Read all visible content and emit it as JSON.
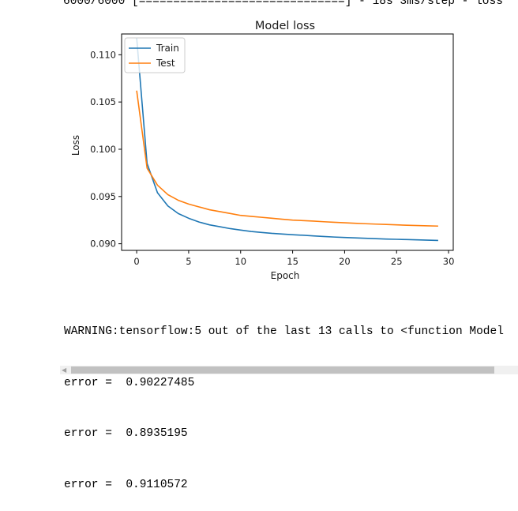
{
  "output": {
    "progress_line": "6000/6000 [==============================] - 18s 3ms/step - loss",
    "warning_line": "WARNING:tensorflow:5 out of the last 13 calls to <function Model",
    "error_lines": [
      "error =  0.90227485",
      "error =  0.8935195",
      "error =  0.9110572"
    ]
  },
  "chart_data": {
    "type": "line",
    "title": "Model loss",
    "xlabel": "Epoch",
    "ylabel": "Loss",
    "xlim": [
      -1.45,
      30.45
    ],
    "ylim": [
      0.0893,
      0.1122
    ],
    "xticks": [
      0,
      5,
      10,
      15,
      20,
      25,
      30
    ],
    "yticks": [
      0.09,
      0.095,
      0.1,
      0.105,
      0.11
    ],
    "ytick_labels": [
      "0.090",
      "0.095",
      "0.100",
      "0.105",
      "0.110"
    ],
    "legend": "upper-left",
    "grid": false,
    "x": [
      0,
      1,
      2,
      3,
      4,
      5,
      6,
      7,
      8,
      9,
      10,
      11,
      12,
      13,
      14,
      15,
      16,
      17,
      18,
      19,
      20,
      21,
      22,
      23,
      24,
      25,
      26,
      27,
      28,
      29
    ],
    "series": [
      {
        "name": "Train",
        "color": "#1f77b4",
        "values": [
          0.1118,
          0.0985,
          0.0954,
          0.094,
          0.0932,
          0.0927,
          0.0923,
          0.092,
          0.0918,
          0.0916,
          0.09145,
          0.0913,
          0.0912,
          0.0911,
          0.09103,
          0.09096,
          0.0909,
          0.09083,
          0.09077,
          0.09071,
          0.09066,
          0.09062,
          0.09058,
          0.09054,
          0.0905,
          0.09047,
          0.09044,
          0.09041,
          0.09038,
          0.09035
        ]
      },
      {
        "name": "Test",
        "color": "#ff7f0e",
        "values": [
          0.1062,
          0.098,
          0.0962,
          0.0952,
          0.0946,
          0.0942,
          0.0939,
          0.0936,
          0.0934,
          0.0932,
          0.093,
          0.0929,
          0.0928,
          0.0927,
          0.0926,
          0.0925,
          0.09245,
          0.0924,
          0.09233,
          0.09227,
          0.09222,
          0.09217,
          0.09212,
          0.09208,
          0.09204,
          0.092,
          0.09196,
          0.09193,
          0.0919,
          0.09187
        ]
      }
    ]
  }
}
